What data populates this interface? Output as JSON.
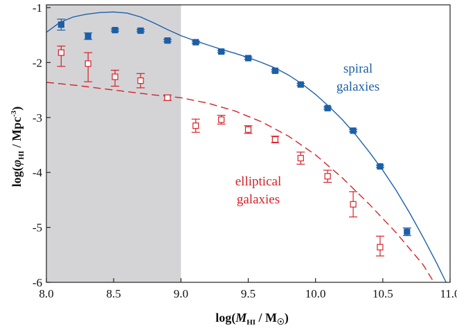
{
  "chart_data": {
    "type": "scatter",
    "xlim": [
      8.0,
      11.0
    ],
    "ylim": [
      -6,
      -0.95
    ],
    "xticks": [
      8.0,
      8.5,
      9.0,
      9.5,
      10.0,
      10.5,
      11.0
    ],
    "xtick_labels": [
      "8.0",
      "8.5",
      "9.0",
      "9.5",
      "10.0",
      "10.5",
      "11.0"
    ],
    "yticks": [
      -1,
      -2,
      -3,
      -4,
      -5,
      -6
    ],
    "ytick_labels": [
      "-1",
      "-2",
      "-3",
      "-4",
      "-5",
      "-6"
    ],
    "xlabel": {
      "pre": "log(",
      "sym": "M",
      "sub": "HI",
      "mid": " / M",
      "sun": "☉",
      "post": ")"
    },
    "ylabel": {
      "pre": "log(",
      "sym": "φ",
      "sub": "HI",
      "post": " / Mpc",
      "sup": "-3",
      "end": ")"
    },
    "shaded_region": {
      "x": [
        8.0,
        9.0
      ],
      "color": "#d4d4d6"
    },
    "grid": false,
    "series": [
      {
        "name": "spiral galaxies",
        "color": "#1b5fa8",
        "marker": "filled-square",
        "points": [
          {
            "x": 8.11,
            "y": -1.31,
            "err_lo": 0.1,
            "err_hi": 0.1
          },
          {
            "x": 8.31,
            "y": -1.52,
            "err_lo": 0.06,
            "err_hi": 0.06
          },
          {
            "x": 8.51,
            "y": -1.41,
            "err_lo": 0.02,
            "err_hi": 0.02
          },
          {
            "x": 8.7,
            "y": -1.42,
            "err_lo": 0.02,
            "err_hi": 0.02
          },
          {
            "x": 8.9,
            "y": -1.6,
            "err_lo": 0.02,
            "err_hi": 0.02
          },
          {
            "x": 9.11,
            "y": -1.63,
            "err_lo": 0.02,
            "err_hi": 0.02
          },
          {
            "x": 9.3,
            "y": -1.8,
            "err_lo": 0.02,
            "err_hi": 0.02
          },
          {
            "x": 9.5,
            "y": -1.92,
            "err_lo": 0.02,
            "err_hi": 0.02
          },
          {
            "x": 9.7,
            "y": -2.15,
            "err_lo": 0.02,
            "err_hi": 0.02
          },
          {
            "x": 9.89,
            "y": -2.4,
            "err_lo": 0.02,
            "err_hi": 0.02
          },
          {
            "x": 10.09,
            "y": -2.83,
            "err_lo": 0.02,
            "err_hi": 0.02
          },
          {
            "x": 10.28,
            "y": -3.24,
            "err_lo": 0.02,
            "err_hi": 0.02
          },
          {
            "x": 10.48,
            "y": -3.89,
            "err_lo": 0.02,
            "err_hi": 0.02
          },
          {
            "x": 10.68,
            "y": -5.08,
            "err_lo": 0.07,
            "err_hi": 0.07
          }
        ],
        "fit_curve": [
          [
            8.0,
            -1.45
          ],
          [
            8.1,
            -1.27
          ],
          [
            8.2,
            -1.17
          ],
          [
            8.3,
            -1.12
          ],
          [
            8.4,
            -1.09
          ],
          [
            8.5,
            -1.08
          ],
          [
            8.6,
            -1.1
          ],
          [
            8.7,
            -1.17
          ],
          [
            8.8,
            -1.28
          ],
          [
            8.9,
            -1.4
          ],
          [
            9.0,
            -1.51
          ],
          [
            9.1,
            -1.6
          ],
          [
            9.2,
            -1.68
          ],
          [
            9.3,
            -1.76
          ],
          [
            9.4,
            -1.83
          ],
          [
            9.5,
            -1.91
          ],
          [
            9.6,
            -2.0
          ],
          [
            9.7,
            -2.1
          ],
          [
            9.8,
            -2.23
          ],
          [
            9.9,
            -2.39
          ],
          [
            10.0,
            -2.58
          ],
          [
            10.1,
            -2.8
          ],
          [
            10.2,
            -3.04
          ],
          [
            10.3,
            -3.32
          ],
          [
            10.4,
            -3.63
          ],
          [
            10.5,
            -3.96
          ],
          [
            10.6,
            -4.33
          ],
          [
            10.7,
            -4.74
          ],
          [
            10.8,
            -5.18
          ],
          [
            10.9,
            -5.65
          ],
          [
            10.97,
            -6.0
          ]
        ]
      },
      {
        "name": "elliptical galaxies",
        "color": "#d62027",
        "marker": "open-square",
        "points": [
          {
            "x": 8.11,
            "y": -1.82,
            "err_lo": 0.25,
            "err_hi": 0.12
          },
          {
            "x": 8.31,
            "y": -2.02,
            "err_lo": 0.33,
            "err_hi": 0.2
          },
          {
            "x": 8.51,
            "y": -2.26,
            "err_lo": 0.17,
            "err_hi": 0.12
          },
          {
            "x": 8.7,
            "y": -2.33,
            "err_lo": 0.13,
            "err_hi": 0.13
          },
          {
            "x": 8.9,
            "y": -2.64,
            "err_lo": 0.05,
            "err_hi": 0.05
          },
          {
            "x": 9.11,
            "y": -3.15,
            "err_lo": 0.12,
            "err_hi": 0.12
          },
          {
            "x": 9.3,
            "y": -3.04,
            "err_lo": 0.08,
            "err_hi": 0.08
          },
          {
            "x": 9.5,
            "y": -3.22,
            "err_lo": 0.07,
            "err_hi": 0.07
          },
          {
            "x": 9.7,
            "y": -3.4,
            "err_lo": 0.06,
            "err_hi": 0.06
          },
          {
            "x": 9.89,
            "y": -3.74,
            "err_lo": 0.11,
            "err_hi": 0.11
          },
          {
            "x": 10.09,
            "y": -4.07,
            "err_lo": 0.11,
            "err_hi": 0.11
          },
          {
            "x": 10.28,
            "y": -4.58,
            "err_lo": 0.23,
            "err_hi": 0.23
          },
          {
            "x": 10.48,
            "y": -5.36,
            "err_lo": 0.16,
            "err_hi": 0.2
          }
        ],
        "fit_curve": [
          [
            8.0,
            -2.36
          ],
          [
            8.2,
            -2.41
          ],
          [
            8.4,
            -2.47
          ],
          [
            8.6,
            -2.53
          ],
          [
            8.8,
            -2.59
          ],
          [
            9.0,
            -2.64
          ],
          [
            9.2,
            -2.74
          ],
          [
            9.4,
            -2.88
          ],
          [
            9.6,
            -3.08
          ],
          [
            9.8,
            -3.34
          ],
          [
            10.0,
            -3.68
          ],
          [
            10.2,
            -4.1
          ],
          [
            10.4,
            -4.58
          ],
          [
            10.6,
            -5.1
          ],
          [
            10.8,
            -5.68
          ],
          [
            10.88,
            -6.0
          ]
        ]
      }
    ],
    "annotations": [
      {
        "text": "spiral",
        "series": 0
      },
      {
        "text": "galaxies",
        "series": 0
      },
      {
        "text": "elliptical",
        "series": 1
      },
      {
        "text": "galaxies",
        "series": 1
      }
    ]
  }
}
